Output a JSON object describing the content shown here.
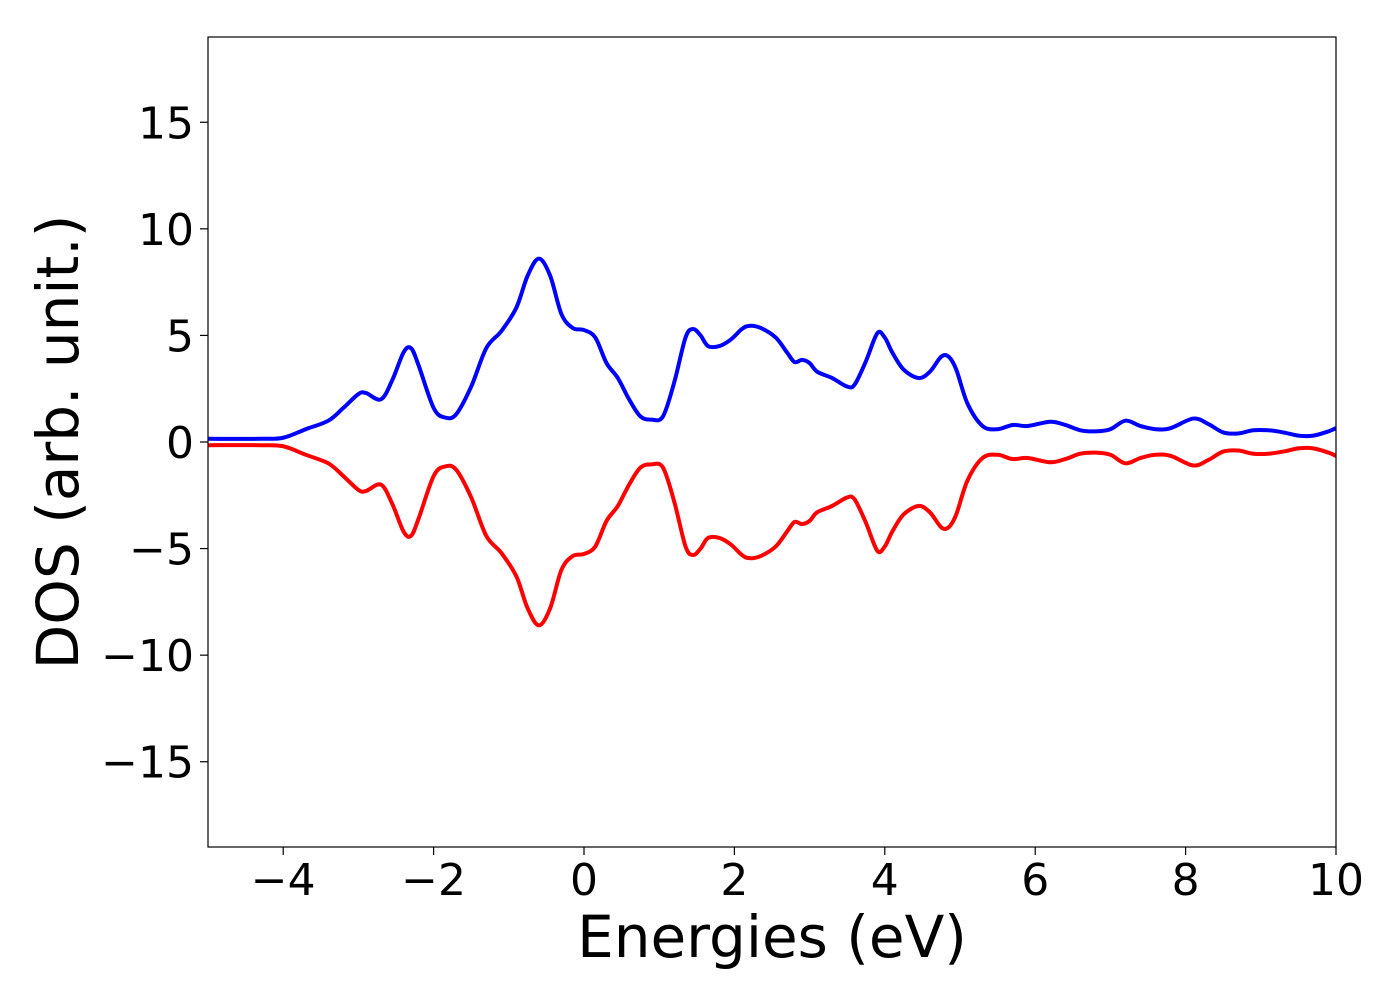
{
  "chart_data": {
    "type": "line",
    "title": "",
    "xlabel": "Energies (eV)",
    "ylabel": "DOS (arb. unit.)",
    "xlim": [
      -5,
      10
    ],
    "ylim": [
      -19,
      19
    ],
    "xticks": [
      -4,
      -2,
      0,
      2,
      4,
      6,
      8,
      10
    ],
    "xtick_labels": [
      "−4",
      "−2",
      "0",
      "2",
      "4",
      "6",
      "8",
      "10"
    ],
    "yticks": [
      15,
      10,
      5,
      0,
      -5,
      -10,
      -15
    ],
    "ytick_labels": [
      "15",
      "10",
      "5",
      "0",
      "−5",
      "−10",
      "−15"
    ],
    "grid": false,
    "legend": "none",
    "series": [
      {
        "color": "#0000ff",
        "points": [
          [
            -5,
            0.15
          ],
          [
            -4.3,
            0.15
          ],
          [
            -4,
            0.2
          ],
          [
            -3.7,
            0.6
          ],
          [
            -3.4,
            1.0
          ],
          [
            -3.2,
            1.6
          ],
          [
            -3.0,
            2.25
          ],
          [
            -2.9,
            2.3
          ],
          [
            -2.7,
            2.0
          ],
          [
            -2.55,
            2.9
          ],
          [
            -2.4,
            4.2
          ],
          [
            -2.3,
            4.4
          ],
          [
            -2.2,
            3.6
          ],
          [
            -2.0,
            1.6
          ],
          [
            -1.85,
            1.15
          ],
          [
            -1.7,
            1.3
          ],
          [
            -1.5,
            2.6
          ],
          [
            -1.3,
            4.4
          ],
          [
            -1.1,
            5.2
          ],
          [
            -0.9,
            6.3
          ],
          [
            -0.75,
            7.8
          ],
          [
            -0.6,
            8.6
          ],
          [
            -0.45,
            7.8
          ],
          [
            -0.3,
            6.0
          ],
          [
            -0.15,
            5.35
          ],
          [
            0,
            5.25
          ],
          [
            0.15,
            4.9
          ],
          [
            0.3,
            3.7
          ],
          [
            0.45,
            3.0
          ],
          [
            0.6,
            2.0
          ],
          [
            0.75,
            1.2
          ],
          [
            0.9,
            1.05
          ],
          [
            1.05,
            1.2
          ],
          [
            1.2,
            2.8
          ],
          [
            1.35,
            4.9
          ],
          [
            1.45,
            5.3
          ],
          [
            1.55,
            5.0
          ],
          [
            1.65,
            4.5
          ],
          [
            1.8,
            4.5
          ],
          [
            1.95,
            4.8
          ],
          [
            2.1,
            5.3
          ],
          [
            2.2,
            5.45
          ],
          [
            2.35,
            5.35
          ],
          [
            2.55,
            4.9
          ],
          [
            2.7,
            4.2
          ],
          [
            2.8,
            3.75
          ],
          [
            2.9,
            3.85
          ],
          [
            3.0,
            3.7
          ],
          [
            3.1,
            3.3
          ],
          [
            3.3,
            3.0
          ],
          [
            3.5,
            2.6
          ],
          [
            3.6,
            2.7
          ],
          [
            3.75,
            3.8
          ],
          [
            3.9,
            5.1
          ],
          [
            4.0,
            4.9
          ],
          [
            4.1,
            4.2
          ],
          [
            4.25,
            3.4
          ],
          [
            4.45,
            3.0
          ],
          [
            4.6,
            3.3
          ],
          [
            4.75,
            4.0
          ],
          [
            4.85,
            4.0
          ],
          [
            4.95,
            3.4
          ],
          [
            5.1,
            1.8
          ],
          [
            5.3,
            0.75
          ],
          [
            5.5,
            0.6
          ],
          [
            5.7,
            0.8
          ],
          [
            5.9,
            0.75
          ],
          [
            6.2,
            0.95
          ],
          [
            6.4,
            0.8
          ],
          [
            6.6,
            0.55
          ],
          [
            6.8,
            0.5
          ],
          [
            7.0,
            0.6
          ],
          [
            7.2,
            1.0
          ],
          [
            7.4,
            0.75
          ],
          [
            7.6,
            0.6
          ],
          [
            7.8,
            0.65
          ],
          [
            8.1,
            1.1
          ],
          [
            8.3,
            0.85
          ],
          [
            8.5,
            0.45
          ],
          [
            8.7,
            0.4
          ],
          [
            8.9,
            0.55
          ],
          [
            9.1,
            0.55
          ],
          [
            9.3,
            0.45
          ],
          [
            9.5,
            0.3
          ],
          [
            9.7,
            0.3
          ],
          [
            9.9,
            0.5
          ],
          [
            10,
            0.65
          ]
        ]
      },
      {
        "color": "#ff0000",
        "points": [
          [
            -5,
            -0.15
          ],
          [
            -4.3,
            -0.15
          ],
          [
            -4,
            -0.2
          ],
          [
            -3.7,
            -0.6
          ],
          [
            -3.4,
            -1.0
          ],
          [
            -3.2,
            -1.6
          ],
          [
            -3.0,
            -2.25
          ],
          [
            -2.9,
            -2.3
          ],
          [
            -2.7,
            -2.0
          ],
          [
            -2.55,
            -2.9
          ],
          [
            -2.4,
            -4.2
          ],
          [
            -2.3,
            -4.4
          ],
          [
            -2.2,
            -3.6
          ],
          [
            -2.0,
            -1.6
          ],
          [
            -1.85,
            -1.15
          ],
          [
            -1.7,
            -1.3
          ],
          [
            -1.5,
            -2.6
          ],
          [
            -1.3,
            -4.4
          ],
          [
            -1.1,
            -5.2
          ],
          [
            -0.9,
            -6.3
          ],
          [
            -0.75,
            -7.8
          ],
          [
            -0.6,
            -8.6
          ],
          [
            -0.45,
            -7.8
          ],
          [
            -0.3,
            -6.0
          ],
          [
            -0.15,
            -5.35
          ],
          [
            0,
            -5.25
          ],
          [
            0.15,
            -4.9
          ],
          [
            0.3,
            -3.7
          ],
          [
            0.45,
            -3.0
          ],
          [
            0.6,
            -2.0
          ],
          [
            0.75,
            -1.2
          ],
          [
            0.9,
            -1.05
          ],
          [
            1.05,
            -1.2
          ],
          [
            1.2,
            -2.8
          ],
          [
            1.35,
            -4.9
          ],
          [
            1.45,
            -5.3
          ],
          [
            1.55,
            -5.0
          ],
          [
            1.65,
            -4.5
          ],
          [
            1.8,
            -4.5
          ],
          [
            1.95,
            -4.8
          ],
          [
            2.1,
            -5.3
          ],
          [
            2.2,
            -5.45
          ],
          [
            2.35,
            -5.35
          ],
          [
            2.55,
            -4.9
          ],
          [
            2.7,
            -4.2
          ],
          [
            2.8,
            -3.75
          ],
          [
            2.9,
            -3.85
          ],
          [
            3.0,
            -3.7
          ],
          [
            3.1,
            -3.3
          ],
          [
            3.3,
            -3.0
          ],
          [
            3.5,
            -2.6
          ],
          [
            3.6,
            -2.7
          ],
          [
            3.75,
            -3.8
          ],
          [
            3.9,
            -5.1
          ],
          [
            4.0,
            -4.9
          ],
          [
            4.1,
            -4.2
          ],
          [
            4.25,
            -3.4
          ],
          [
            4.45,
            -3.0
          ],
          [
            4.6,
            -3.3
          ],
          [
            4.75,
            -4.0
          ],
          [
            4.85,
            -4.0
          ],
          [
            4.95,
            -3.4
          ],
          [
            5.1,
            -1.8
          ],
          [
            5.3,
            -0.75
          ],
          [
            5.5,
            -0.6
          ],
          [
            5.7,
            -0.8
          ],
          [
            5.9,
            -0.75
          ],
          [
            6.2,
            -0.95
          ],
          [
            6.4,
            -0.8
          ],
          [
            6.6,
            -0.55
          ],
          [
            6.8,
            -0.5
          ],
          [
            7.0,
            -0.6
          ],
          [
            7.2,
            -1.0
          ],
          [
            7.4,
            -0.75
          ],
          [
            7.6,
            -0.6
          ],
          [
            7.8,
            -0.65
          ],
          [
            8.1,
            -1.1
          ],
          [
            8.3,
            -0.85
          ],
          [
            8.5,
            -0.45
          ],
          [
            8.7,
            -0.4
          ],
          [
            8.9,
            -0.55
          ],
          [
            9.1,
            -0.55
          ],
          [
            9.3,
            -0.45
          ],
          [
            9.5,
            -0.3
          ],
          [
            9.7,
            -0.3
          ],
          [
            9.9,
            -0.5
          ],
          [
            10,
            -0.65
          ]
        ]
      }
    ]
  }
}
